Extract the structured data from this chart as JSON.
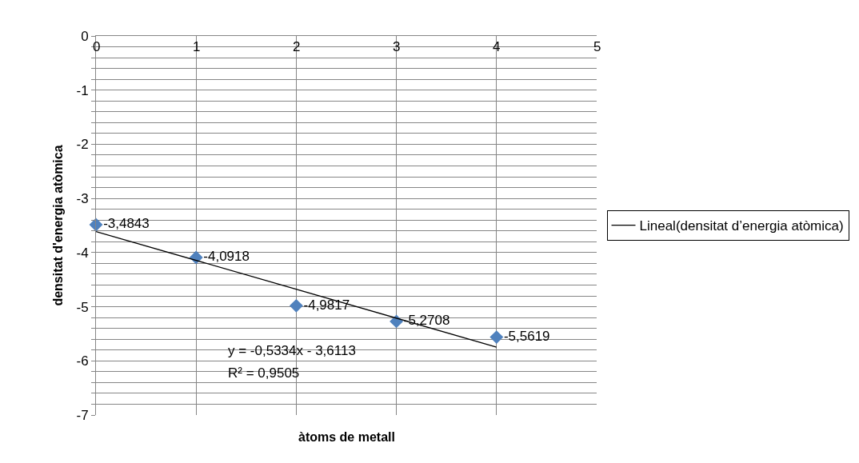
{
  "chart_data": {
    "type": "scatter",
    "xlabel": "àtoms de metall",
    "ylabel": "densitat d'energia atòmica",
    "x": [
      0,
      1,
      2,
      3,
      4
    ],
    "series": [
      {
        "color": "#4f81bd",
        "marker": "diamond",
        "values": [
          -3.4843,
          -4.0918,
          -4.9817,
          -5.2708,
          -5.5619
        ],
        "value_labels": [
          "-3,4843",
          "-4,0918",
          "-4,9817",
          "-5,2708",
          "-5,5619"
        ]
      },
      {
        "type": "line",
        "name": "Lineal(densitat d’energia atòmica)",
        "color": "#000000",
        "marker": "none",
        "x": [
          0,
          4
        ],
        "values": [
          -3.6113,
          -5.7449
        ]
      }
    ],
    "annotations": [
      "y = -0,5334x - 3,6113",
      "R² = 0,9505"
    ],
    "xlim": [
      0,
      5
    ],
    "xticks": [
      0,
      1,
      2,
      3,
      4,
      5
    ],
    "ylim": [
      -7,
      0
    ],
    "yticks": [
      0,
      {
        "value": -0.2,
        "label": null
      },
      {
        "value": -0.4,
        "label": null
      },
      {
        "value": -0.6,
        "label": null
      },
      {
        "value": -0.8,
        "label": null
      },
      -1,
      {
        "value": -1.2,
        "label": null
      },
      {
        "value": -1.4,
        "label": null
      },
      {
        "value": -1.6,
        "label": null
      },
      {
        "value": -1.8,
        "label": null
      },
      -2,
      {
        "value": -2.2,
        "label": null
      },
      {
        "value": -2.4,
        "label": null
      },
      {
        "value": -2.6,
        "label": null
      },
      {
        "value": -2.8,
        "label": null
      },
      -3,
      {
        "value": -3.2,
        "label": null
      },
      {
        "value": -3.4,
        "label": null
      },
      {
        "value": -3.6,
        "label": null
      },
      {
        "value": -3.8,
        "label": null
      },
      -4,
      {
        "value": -4.2,
        "label": null
      },
      {
        "value": -4.4,
        "label": null
      },
      {
        "value": -4.6,
        "label": null
      },
      {
        "value": -4.8,
        "label": null
      },
      -5,
      {
        "value": -5.2,
        "label": null
      },
      {
        "value": -5.4,
        "label": null
      },
      {
        "value": -5.6,
        "label": null
      },
      {
        "value": -5.8,
        "label": null
      },
      -6,
      {
        "value": -6.2,
        "label": null
      },
      {
        "value": -6.4,
        "label": null
      },
      {
        "value": -6.6,
        "label": null
      },
      {
        "value": -6.8,
        "label": null
      },
      -7
    ],
    "grid": true,
    "legend": "right"
  }
}
